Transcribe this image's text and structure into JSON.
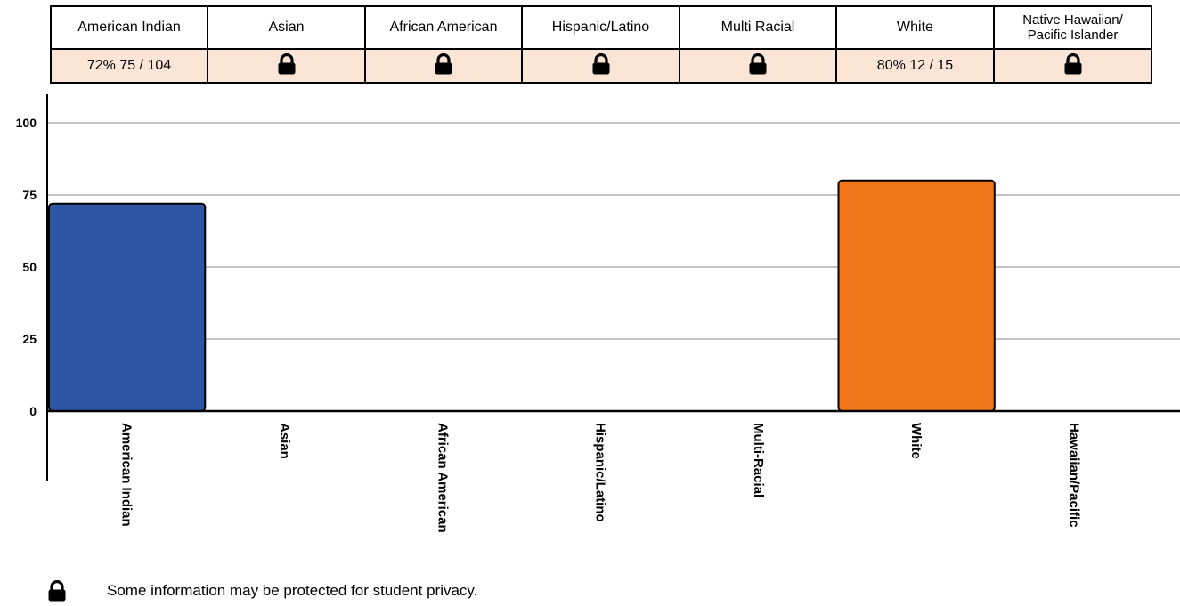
{
  "table": {
    "headers": [
      "American Indian",
      "Asian",
      "African American",
      "Hispanic/Latino",
      "Multi Racial",
      "White",
      "Native Hawaiian/ Pacific Islander"
    ],
    "header_line1": [
      "",
      "",
      "",
      "",
      "",
      "",
      "Native Hawaiian/"
    ],
    "header_line2": [
      "",
      "",
      "",
      "",
      "",
      "",
      "Pacific Islander"
    ],
    "cells": [
      {
        "text": "72%  75 / 104",
        "locked": false
      },
      {
        "text": "",
        "locked": true,
        "icon": "lock-icon"
      },
      {
        "text": "",
        "locked": true,
        "icon": "lock-icon"
      },
      {
        "text": "",
        "locked": true,
        "icon": "lock-icon"
      },
      {
        "text": "",
        "locked": true,
        "icon": "lock-icon"
      },
      {
        "text": "80%  12 / 15",
        "locked": false
      },
      {
        "text": "",
        "locked": true,
        "icon": "lock-icon"
      }
    ],
    "value_bg": "#fbe5d6"
  },
  "chart_data": {
    "type": "bar",
    "categories": [
      "American Indian",
      "Asian",
      "African American",
      "Hispanic/Latino",
      "Multi-Racial",
      "White",
      "Hawaiian/Pacific"
    ],
    "values": [
      72,
      null,
      null,
      null,
      null,
      80,
      null
    ],
    "colors": [
      "#2e55a4",
      null,
      null,
      null,
      null,
      "#ef7719",
      null
    ],
    "yticks": [
      0,
      25,
      50,
      75,
      100
    ],
    "ylim": [
      0,
      100
    ],
    "grid": true,
    "title": "",
    "xlabel": "",
    "ylabel": ""
  },
  "footer": {
    "icon": "lock-icon",
    "note": "Some information may be protected for student privacy."
  }
}
